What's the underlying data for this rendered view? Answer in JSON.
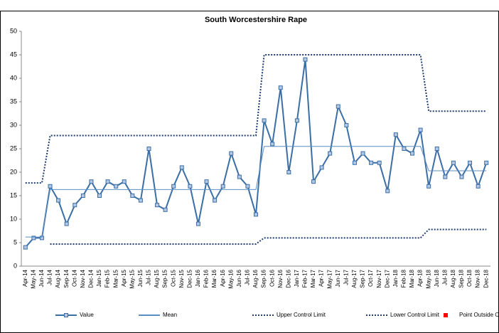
{
  "chart_data": {
    "type": "line",
    "title": "South Worcestershire Rape",
    "categories": [
      "Apr-14",
      "May-14",
      "Jun-14",
      "Jul-14",
      "Aug-14",
      "Sep-14",
      "Oct-14",
      "Nov-14",
      "Dec-14",
      "Jan-15",
      "Feb-15",
      "Mar-15",
      "Apr-15",
      "May-15",
      "Jun-15",
      "Jul-15",
      "Aug-15",
      "Sep-15",
      "Oct-15",
      "Nov-15",
      "Dec-15",
      "Jan-16",
      "Feb-16",
      "Mar-16",
      "Apr-16",
      "May-16",
      "Jun-16",
      "Jul-16",
      "Aug-16",
      "Sep-16",
      "Oct-16",
      "Nov-16",
      "Dec-16",
      "Jan-17",
      "Feb-17",
      "Mar-17",
      "Apr-17",
      "May-17",
      "Jun-17",
      "Jul-17",
      "Aug-17",
      "Sep-17",
      "Oct-17",
      "Nov-17",
      "Dec-17",
      "Jan-18",
      "Feb-18",
      "Mar-18",
      "Apr-18",
      "May-18",
      "Jun-18",
      "Jul-18",
      "Aug-18",
      "Sep-18",
      "Oct-18",
      "Nov-18",
      "Dec-18"
    ],
    "series": [
      {
        "name": "Value",
        "color": "#3a6ea5",
        "line_style": "solid",
        "marker": "square",
        "values": [
          4,
          6,
          6,
          17,
          14,
          9,
          13,
          15,
          18,
          15,
          18,
          17,
          18,
          15,
          14,
          25,
          13,
          12,
          17,
          21,
          17,
          9,
          18,
          14,
          17,
          24,
          19,
          17,
          11,
          31,
          26,
          38,
          20,
          31,
          44,
          18,
          21,
          24,
          34,
          30,
          22,
          24,
          22,
          22,
          16,
          28,
          25,
          24,
          29,
          17,
          25,
          19,
          22,
          19,
          22,
          17,
          22
        ]
      },
      {
        "name": "Mean",
        "color": "#5b8ec4",
        "line_style": "solid",
        "values": [
          6.2,
          6.2,
          6.2,
          16.3,
          16.3,
          16.3,
          16.3,
          16.3,
          16.3,
          16.3,
          16.3,
          16.3,
          16.3,
          16.3,
          16.3,
          16.3,
          16.3,
          16.3,
          16.3,
          16.3,
          16.3,
          16.3,
          16.3,
          16.3,
          16.3,
          16.3,
          16.3,
          16.3,
          16.3,
          25.5,
          25.5,
          25.5,
          25.5,
          25.5,
          25.5,
          25.5,
          25.5,
          25.5,
          25.5,
          25.5,
          25.5,
          25.5,
          25.5,
          25.5,
          25.5,
          25.5,
          25.5,
          25.5,
          25.5,
          20.3,
          20.3,
          20.3,
          20.3,
          20.3,
          20.3,
          20.3,
          20.3
        ]
      },
      {
        "name": "Upper Control Limit",
        "color": "#1f3d6e",
        "line_style": "dotted",
        "values": [
          17.7,
          17.7,
          17.7,
          27.8,
          27.8,
          27.8,
          27.8,
          27.8,
          27.8,
          27.8,
          27.8,
          27.8,
          27.8,
          27.8,
          27.8,
          27.8,
          27.8,
          27.8,
          27.8,
          27.8,
          27.8,
          27.8,
          27.8,
          27.8,
          27.8,
          27.8,
          27.8,
          27.8,
          27.8,
          45,
          45,
          45,
          45,
          45,
          45,
          45,
          45,
          45,
          45,
          45,
          45,
          45,
          45,
          45,
          45,
          45,
          45,
          45,
          45,
          33,
          33,
          33,
          33,
          33,
          33,
          33,
          33
        ]
      },
      {
        "name": "Lower Control Limit",
        "color": "#1f3d6e",
        "line_style": "dotted",
        "values": [
          null,
          null,
          null,
          4.7,
          4.7,
          4.7,
          4.7,
          4.7,
          4.7,
          4.7,
          4.7,
          4.7,
          4.7,
          4.7,
          4.7,
          4.7,
          4.7,
          4.7,
          4.7,
          4.7,
          4.7,
          4.7,
          4.7,
          4.7,
          4.7,
          4.7,
          4.7,
          4.7,
          4.7,
          6,
          6,
          6,
          6,
          6,
          6,
          6,
          6,
          6,
          6,
          6,
          6,
          6,
          6,
          6,
          6,
          6,
          6,
          6,
          6,
          7.8,
          7.8,
          7.8,
          7.8,
          7.8,
          7.8,
          7.8,
          7.8
        ]
      },
      {
        "name": "Point Outside Control Limit",
        "color": "#ff0000",
        "line_style": "none",
        "marker": "square",
        "values": [
          null,
          null,
          null,
          null,
          null,
          null,
          null,
          null,
          null,
          null,
          null,
          null,
          null,
          null,
          null,
          null,
          null,
          null,
          null,
          null,
          null,
          null,
          null,
          null,
          null,
          null,
          null,
          null,
          null,
          null,
          null,
          null,
          null,
          null,
          null,
          null,
          null,
          null,
          null,
          null,
          null,
          null,
          null,
          null,
          null,
          null,
          null,
          null,
          null,
          null,
          null,
          null,
          null,
          null,
          null,
          null,
          null
        ]
      }
    ],
    "ylim": [
      0,
      50
    ],
    "yticks": [
      0,
      5,
      10,
      15,
      20,
      25,
      30,
      35,
      40,
      45,
      50
    ],
    "grid": false
  }
}
